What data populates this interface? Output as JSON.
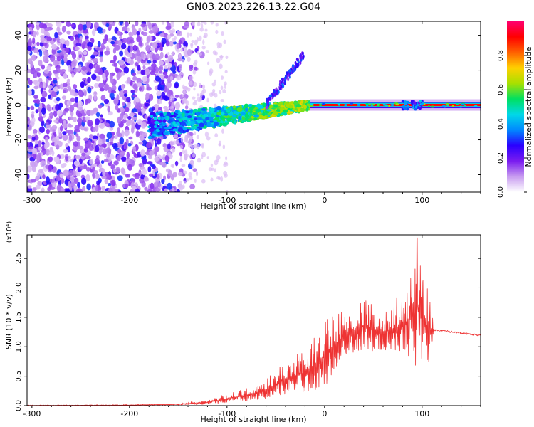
{
  "title": "GN03.2023.226.13.22.G04",
  "chart_data": [
    {
      "type": "heatmap",
      "name": "spectrogram",
      "xlabel": "Height of straight line (km)",
      "ylabel": "Frequency (Hz)",
      "xlim": [
        -305,
        160
      ],
      "ylim": [
        -50,
        48
      ],
      "xticks": [
        -300,
        -200,
        -100,
        0,
        100
      ],
      "yticks": [
        -40,
        -20,
        0,
        20,
        40
      ],
      "colorbar": {
        "label": "Normalized spectral amplitude",
        "range": [
          0,
          1
        ],
        "ticks": [
          "0.0",
          "0.2",
          "0.4",
          "0.6",
          "0.8"
        ],
        "colormap": [
          "#ffffff",
          "#c89cf0",
          "#7a1cf0",
          "#2a00ff",
          "#0088ff",
          "#00d8e8",
          "#00e060",
          "#a8e000",
          "#ffd000",
          "#ff6000",
          "#ff0000",
          "#ff0070"
        ]
      },
      "features": {
        "noise_region_x": [
          -305,
          -150
        ],
        "converging_track_x": [
          -180,
          -15
        ],
        "stable_line_x": [
          -15,
          160
        ],
        "stable_line_frequency_hz": 0,
        "rising_branch_x": [
          -60,
          -20
        ],
        "rising_branch_frequency_hz": [
          0,
          30
        ]
      }
    },
    {
      "type": "line",
      "name": "snr",
      "xlabel": "Height of straight line (km)",
      "ylabel": "SNR (10 * v/v)",
      "multiplier_label": "(x10⁴)",
      "xlim": [
        -305,
        160
      ],
      "ylim": [
        0,
        2.9
      ],
      "xticks": [
        -300,
        -200,
        -100,
        0,
        100
      ],
      "yticks": [
        "0.0",
        "0.5",
        "1.0",
        "1.5",
        "2.0",
        "2.5"
      ],
      "line_color": "#ee3333",
      "envelope": {
        "x": [
          -305,
          -200,
          -150,
          -120,
          -100,
          -80,
          -60,
          -40,
          -20,
          0,
          20,
          40,
          60,
          80,
          95,
          108,
          112,
          130,
          160
        ],
        "y_low": [
          0,
          0,
          0.01,
          0.02,
          0.05,
          0.08,
          0.12,
          0.18,
          0.2,
          0.3,
          0.85,
          0.95,
          0.9,
          0.9,
          0.6,
          0.7,
          1.27,
          1.24,
          1.18
        ],
        "y_high": [
          0.01,
          0.02,
          0.04,
          0.1,
          0.2,
          0.3,
          0.45,
          0.8,
          1.0,
          1.5,
          1.6,
          1.85,
          1.7,
          1.9,
          2.85,
          2.0,
          1.3,
          1.27,
          1.21
        ]
      },
      "peak": {
        "x": 95,
        "y": 2.85
      }
    }
  ]
}
